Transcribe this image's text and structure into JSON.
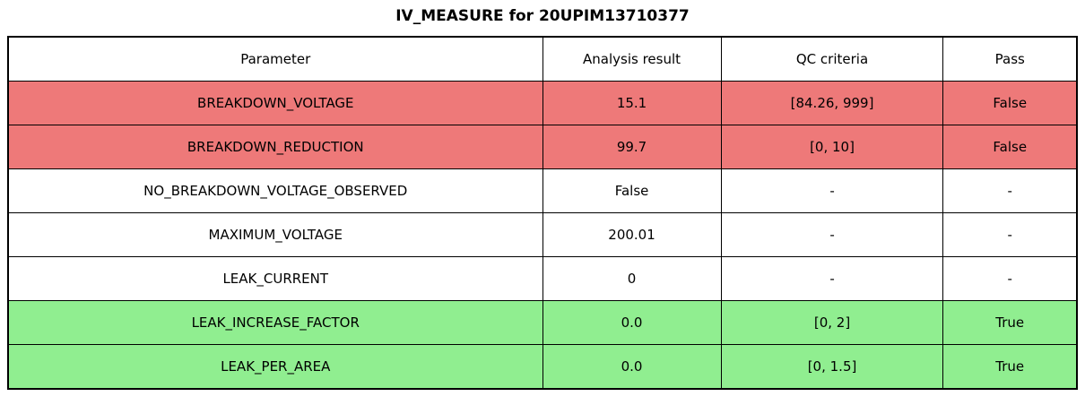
{
  "title": "IV_MEASURE for 20UPIM13710377",
  "table": {
    "headers": [
      "Parameter",
      "Analysis result",
      "QC criteria",
      "Pass"
    ],
    "rows": [
      {
        "parameter": "BREAKDOWN_VOLTAGE",
        "result": "15.1",
        "criteria": "[84.26, 999]",
        "pass": "False",
        "status": "fail"
      },
      {
        "parameter": "BREAKDOWN_REDUCTION",
        "result": "99.7",
        "criteria": "[0, 10]",
        "pass": "False",
        "status": "fail"
      },
      {
        "parameter": "NO_BREAKDOWN_VOLTAGE_OBSERVED",
        "result": "False",
        "criteria": "-",
        "pass": "-",
        "status": "none"
      },
      {
        "parameter": "MAXIMUM_VOLTAGE",
        "result": "200.01",
        "criteria": "-",
        "pass": "-",
        "status": "none"
      },
      {
        "parameter": "LEAK_CURRENT",
        "result": "0",
        "criteria": "-",
        "pass": "-",
        "status": "none"
      },
      {
        "parameter": "LEAK_INCREASE_FACTOR",
        "result": "0.0",
        "criteria": "[0, 2]",
        "pass": "True",
        "status": "pass"
      },
      {
        "parameter": "LEAK_PER_AREA",
        "result": "0.0",
        "criteria": "[0, 1.5]",
        "pass": "True",
        "status": "pass"
      }
    ]
  },
  "colors": {
    "fail_bg": "#ee7979",
    "pass_bg": "#90ee90",
    "none_bg": "#ffffff",
    "border": "#000000",
    "title_text": "#000000"
  },
  "chart_data": {
    "type": "table",
    "title": "IV_MEASURE for 20UPIM13710377",
    "columns": [
      "Parameter",
      "Analysis result",
      "QC criteria",
      "Pass"
    ],
    "rows": [
      [
        "BREAKDOWN_VOLTAGE",
        "15.1",
        "[84.26, 999]",
        "False"
      ],
      [
        "BREAKDOWN_REDUCTION",
        "99.7",
        "[0, 10]",
        "False"
      ],
      [
        "NO_BREAKDOWN_VOLTAGE_OBSERVED",
        "False",
        "-",
        "-"
      ],
      [
        "MAXIMUM_VOLTAGE",
        "200.01",
        "-",
        "-"
      ],
      [
        "LEAK_CURRENT",
        "0",
        "-",
        "-"
      ],
      [
        "LEAK_INCREASE_FACTOR",
        "0.0",
        "[0, 2]",
        "True"
      ],
      [
        "LEAK_PER_AREA",
        "0.0",
        "[0, 1.5]",
        "True"
      ]
    ],
    "row_status": [
      "fail",
      "fail",
      "none",
      "none",
      "none",
      "pass",
      "pass"
    ],
    "layout_hints": {
      "row_fill_fail": "#ee7979",
      "row_fill_pass": "#90ee90",
      "row_fill_none": "#ffffff",
      "grid": "on",
      "header_fill": "#ffffff"
    }
  }
}
